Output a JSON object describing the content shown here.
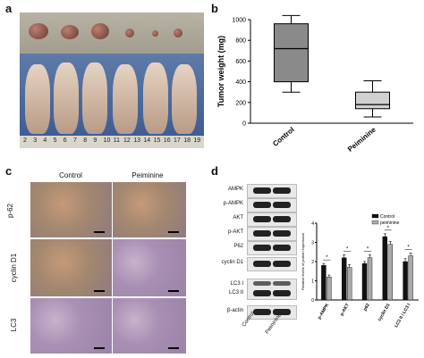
{
  "panels": {
    "a": {
      "letter": "a",
      "ruler_numbers": [
        "2",
        "3",
        "4",
        "5",
        "6",
        "7",
        "8",
        "9",
        "10",
        "11",
        "12",
        "13",
        "14",
        "15",
        "16",
        "17",
        "18",
        "19"
      ]
    },
    "b": {
      "letter": "b"
    },
    "c": {
      "letter": "c",
      "col_labels": [
        "Control",
        "Peiminine"
      ],
      "row_labels": [
        "p-62",
        "cyclin D1",
        "LC3"
      ]
    },
    "d": {
      "letter": "d",
      "blot_labels": [
        "AMPK",
        "p-AMPK",
        "AKT",
        "p-AKT",
        "P62",
        "cyclin D1",
        "LC3 I",
        "LC3 II",
        "β-actin"
      ],
      "lane_labels": [
        "Control",
        "Peiminine"
      ]
    }
  },
  "chart_data": [
    {
      "type": "box",
      "ylabel": "Tumor weight (mg)",
      "yticks": [
        "0",
        "200",
        "400",
        "600",
        "800",
        "1000"
      ],
      "ylim": [
        0,
        1000
      ],
      "categories": [
        "Control",
        "Peiminine"
      ],
      "boxes": [
        {
          "category": "Control",
          "min": 300,
          "q1": 400,
          "median": 720,
          "q3": 960,
          "max": 1040,
          "color": "#8a8a8a"
        },
        {
          "category": "Peiminine",
          "min": 60,
          "q1": 140,
          "median": 180,
          "q3": 300,
          "max": 410,
          "color": "#d0d0d0"
        }
      ],
      "grid": false
    },
    {
      "type": "bar",
      "ylabel": "Relative levels of protein expression",
      "yticks": [
        "0",
        "1",
        "2",
        "3",
        "4"
      ],
      "ylim": [
        0,
        4
      ],
      "categories": [
        "p-AMPK",
        "p-AKT",
        "p62",
        "cyclin D1",
        "LC3 II / LC3 I"
      ],
      "series": [
        {
          "name": "Control",
          "values": [
            1.8,
            2.2,
            1.9,
            3.3,
            2.0
          ],
          "errors": [
            0.1,
            0.15,
            0.1,
            0.15,
            0.15
          ],
          "color": "#111111"
        },
        {
          "name": "peiminine",
          "values": [
            1.2,
            1.7,
            2.2,
            2.9,
            2.3
          ],
          "errors": [
            0.1,
            0.15,
            0.15,
            0.15,
            0.15
          ],
          "color": "#aaaaaa"
        }
      ],
      "significance": [
        "*",
        "*",
        "*",
        "*",
        "*"
      ],
      "legend": "top-right"
    }
  ]
}
